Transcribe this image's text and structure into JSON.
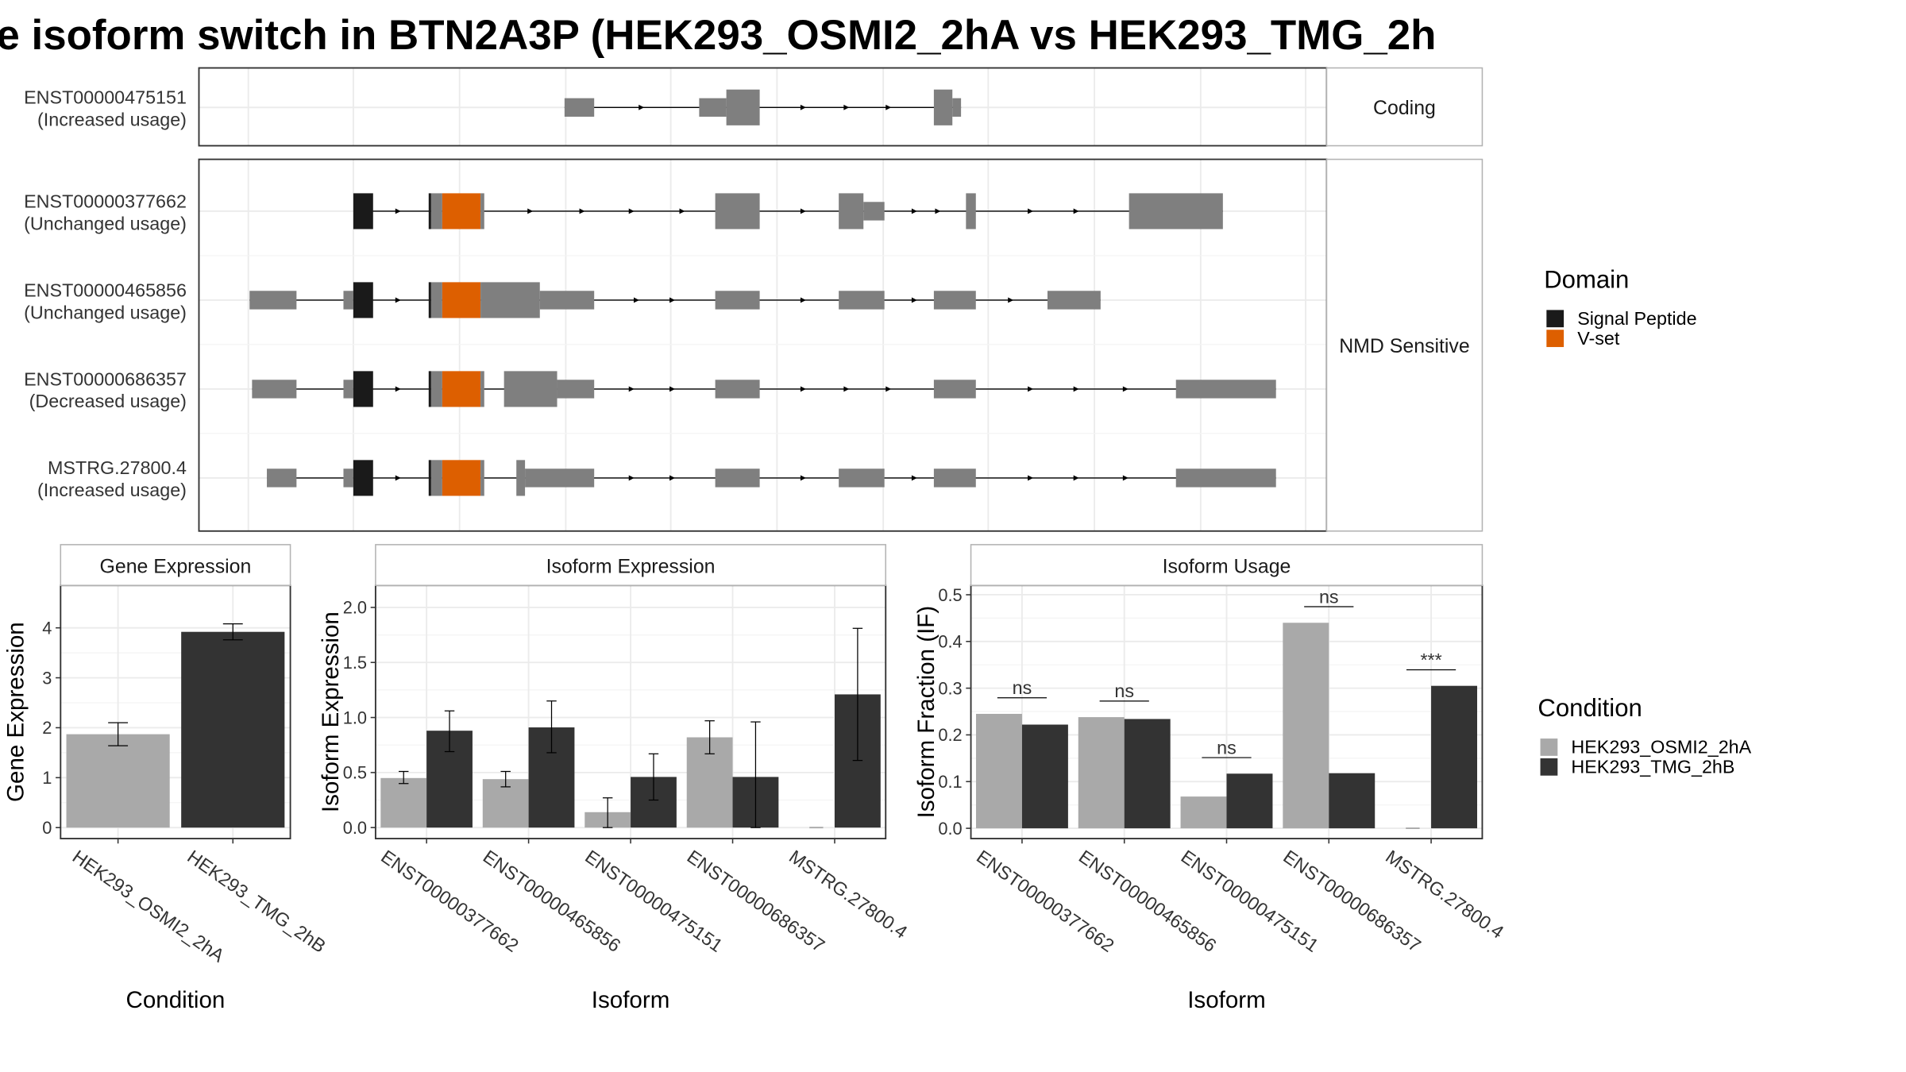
{
  "title": "e isoform switch in BTN2A3P (HEK293_OSMI2_2hA vs HEK293_TMG_2h",
  "colors": {
    "exon": "#7f7f7f",
    "signal_peptide": "#1a1a1a",
    "v_set": "#dd5f00",
    "hek_osmi": "#a9a9a9",
    "hek_tmg": "#333333",
    "grid": "#ebebeb",
    "panel_border": "#333333",
    "strip_border": "#b3b3b3"
  },
  "structure": {
    "panels": [
      {
        "strip": "Coding",
        "transcripts": [
          {
            "name": "ENST00000475151",
            "usage": "(Increased usage)",
            "blocks": [
              [
                457,
                481,
                "exon",
                "s"
              ],
              [
                566,
                588,
                "exon",
                "s"
              ],
              [
                588,
                615,
                "exon",
                "l"
              ],
              [
                756,
                771,
                "exon",
                "l"
              ],
              [
                771,
                778,
                "exon",
                "s"
              ]
            ],
            "arrows": [
              520,
              651,
              686,
              720
            ]
          }
        ]
      },
      {
        "strip": "NMD Sensitive",
        "transcripts": [
          {
            "name": "ENST00000377662",
            "usage": "(Unchanged usage)",
            "blocks": [
              [
                286,
                302,
                "sp",
                "l"
              ],
              [
                347,
                349,
                "sp",
                "l"
              ],
              [
                349,
                358,
                "exon",
                "l"
              ],
              [
                358,
                389,
                "vset",
                "l"
              ],
              [
                389,
                392,
                "exon",
                "l"
              ],
              [
                579,
                615,
                "exon",
                "l"
              ],
              [
                679,
                699,
                "exon",
                "l"
              ],
              [
                699,
                716,
                "exon",
                "s"
              ],
              [
                782,
                790,
                "exon",
                "l"
              ],
              [
                914,
                990,
                "exon",
                "l"
              ]
            ],
            "arrows": [
              323,
              430,
              472,
              512,
              553,
              651,
              741,
              760,
              835,
              872
            ]
          },
          {
            "name": "ENST00000465856",
            "usage": "(Unchanged usage)",
            "blocks": [
              [
                202,
                240,
                "exon",
                "s"
              ],
              [
                278,
                286,
                "exon",
                "s"
              ],
              [
                286,
                302,
                "sp",
                "l"
              ],
              [
                347,
                349,
                "sp",
                "l"
              ],
              [
                349,
                358,
                "exon",
                "l"
              ],
              [
                358,
                389,
                "vset",
                "l"
              ],
              [
                389,
                437,
                "exon",
                "l"
              ],
              [
                437,
                481,
                "exon",
                "s"
              ],
              [
                579,
                615,
                "exon",
                "s"
              ],
              [
                679,
                716,
                "exon",
                "s"
              ],
              [
                756,
                790,
                "exon",
                "s"
              ],
              [
                848,
                891,
                "exon",
                "s"
              ]
            ],
            "arrows": [
              323,
              516,
              545,
              651,
              741,
              819
            ]
          },
          {
            "name": "ENST00000686357",
            "usage": "(Decreased usage)",
            "blocks": [
              [
                204,
                240,
                "exon",
                "s"
              ],
              [
                278,
                286,
                "exon",
                "s"
              ],
              [
                286,
                302,
                "sp",
                "l"
              ],
              [
                347,
                349,
                "sp",
                "l"
              ],
              [
                349,
                358,
                "exon",
                "l"
              ],
              [
                358,
                389,
                "vset",
                "l"
              ],
              [
                389,
                392,
                "exon",
                "l"
              ],
              [
                408,
                451,
                "exon",
                "l"
              ],
              [
                451,
                481,
                "exon",
                "s"
              ],
              [
                579,
                615,
                "exon",
                "s"
              ],
              [
                756,
                790,
                "exon",
                "s"
              ],
              [
                952,
                1033,
                "exon",
                "s"
              ]
            ],
            "arrows": [
              323,
              512,
              545,
              651,
              686,
              720,
              835,
              872,
              912
            ]
          },
          {
            "name": "MSTRG.27800.4",
            "usage": "(Increased usage)",
            "blocks": [
              [
                216,
                240,
                "exon",
                "s"
              ],
              [
                278,
                286,
                "exon",
                "s"
              ],
              [
                286,
                302,
                "sp",
                "l"
              ],
              [
                347,
                349,
                "sp",
                "l"
              ],
              [
                349,
                358,
                "exon",
                "l"
              ],
              [
                358,
                389,
                "vset",
                "l"
              ],
              [
                389,
                392,
                "exon",
                "l"
              ],
              [
                418,
                425,
                "exon",
                "l"
              ],
              [
                425,
                481,
                "exon",
                "s"
              ],
              [
                579,
                615,
                "exon",
                "s"
              ],
              [
                679,
                716,
                "exon",
                "s"
              ],
              [
                756,
                790,
                "exon",
                "s"
              ],
              [
                952,
                1033,
                "exon",
                "s"
              ]
            ],
            "arrows": [
              323,
              512,
              545,
              651,
              741,
              835,
              872,
              912
            ]
          }
        ]
      }
    ],
    "domain_legend": {
      "title": "Domain",
      "items": [
        {
          "label": "Signal Peptide",
          "color": "#1a1a1a"
        },
        {
          "label": "V-set",
          "color": "#dd5f00"
        }
      ]
    }
  },
  "chart_data": [
    {
      "type": "bar",
      "title": "Gene Expression",
      "xlabel": "Condition",
      "ylabel": "Gene Expression",
      "categories": [
        "HEK293_OSMI2_2hA",
        "HEK293_TMG_2hB"
      ],
      "values": [
        1.87,
        3.92
      ],
      "errors": [
        [
          1.64,
          2.1
        ],
        [
          3.76,
          4.08
        ]
      ],
      "colors": [
        "#a9a9a9",
        "#333333"
      ],
      "ylim": [
        -0.22,
        4.85
      ],
      "yticks": [
        0,
        1,
        2,
        3,
        4
      ]
    },
    {
      "type": "bar",
      "title": "Isoform Expression",
      "xlabel": "Isoform",
      "ylabel": "Isoform Expression",
      "categories": [
        "ENST00000377662",
        "ENST00000465856",
        "ENST00000475151",
        "ENST00000686357",
        "MSTRG.27800.4"
      ],
      "series": [
        {
          "name": "HEK293_OSMI2_2hA",
          "values": [
            0.45,
            0.44,
            0.14,
            0.82,
            0.0
          ],
          "errors": [
            [
              0.4,
              0.51
            ],
            [
              0.37,
              0.51
            ],
            [
              0.0,
              0.27
            ],
            [
              0.67,
              0.97
            ],
            [
              0.0,
              0.0
            ]
          ]
        },
        {
          "name": "HEK293_TMG_2hB",
          "values": [
            0.88,
            0.91,
            0.46,
            0.46,
            1.21
          ],
          "errors": [
            [
              0.69,
              1.06
            ],
            [
              0.68,
              1.15
            ],
            [
              0.25,
              0.67
            ],
            [
              0.0,
              0.96
            ],
            [
              0.61,
              1.81
            ]
          ]
        }
      ],
      "ylim": [
        -0.1,
        2.2
      ],
      "yticks": [
        0.0,
        0.5,
        1.0,
        1.5,
        2.0
      ],
      "ytick_labels": [
        "0.0",
        "0.5",
        "1.0",
        "1.5",
        "2.0"
      ]
    },
    {
      "type": "bar",
      "title": "Isoform Usage",
      "xlabel": "Isoform",
      "ylabel": "Isoform Fraction (IF)",
      "categories": [
        "ENST00000377662",
        "ENST00000465856",
        "ENST00000475151",
        "ENST00000686357",
        "MSTRG.27800.4"
      ],
      "series": [
        {
          "name": "HEK293_OSMI2_2hA",
          "values": [
            0.245,
            0.238,
            0.068,
            0.44,
            0.0
          ]
        },
        {
          "name": "HEK293_TMG_2hB",
          "values": [
            0.222,
            0.234,
            0.117,
            0.118,
            0.305
          ]
        }
      ],
      "significance": [
        "ns",
        "ns",
        "ns",
        "ns",
        "***"
      ],
      "ylim": [
        -0.022,
        0.52
      ],
      "yticks": [
        0.0,
        0.1,
        0.2,
        0.3,
        0.4,
        0.5
      ],
      "ytick_labels": [
        "0.0",
        "0.1",
        "0.2",
        "0.3",
        "0.4",
        "0.5"
      ]
    }
  ],
  "condition_legend": {
    "title": "Condition",
    "items": [
      {
        "label": "HEK293_OSMI2_2hA",
        "color": "#a9a9a9"
      },
      {
        "label": "HEK293_TMG_2hB",
        "color": "#333333"
      }
    ]
  }
}
